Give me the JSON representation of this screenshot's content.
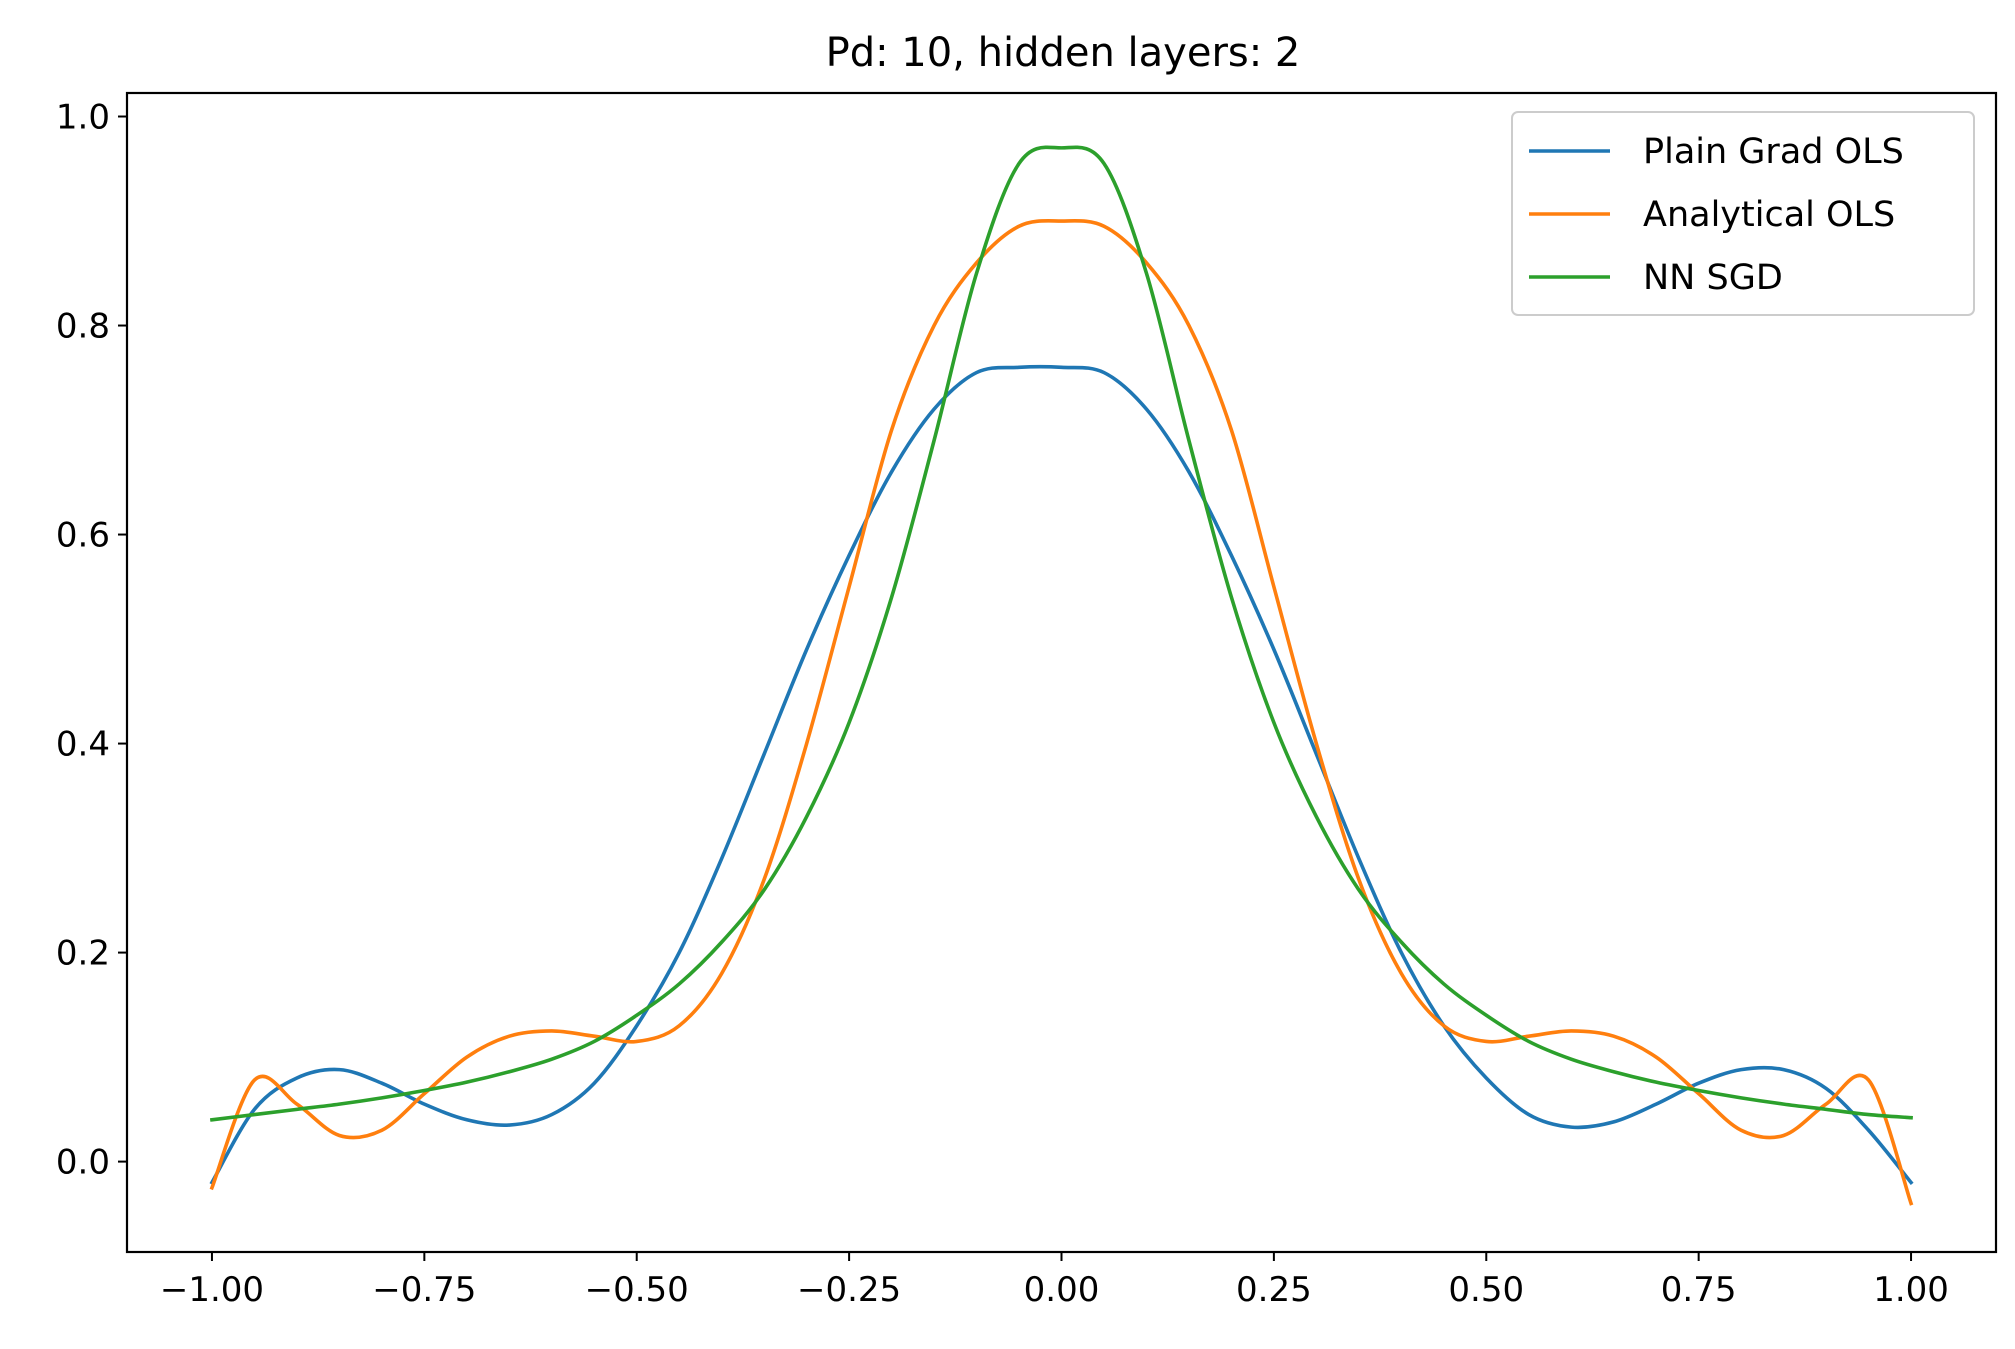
{
  "chart_data": {
    "type": "line",
    "title": "Pd: 10, hidden layers: 2",
    "xlabel": "",
    "ylabel": "",
    "xlim": [
      -1.1,
      1.1
    ],
    "ylim": [
      -0.0865,
      1.0225
    ],
    "x_ticks": [
      -1.0,
      -0.75,
      -0.5,
      -0.25,
      0.0,
      0.25,
      0.5,
      0.75,
      1.0
    ],
    "x_tick_labels": [
      "−1.00",
      "−0.75",
      "−0.50",
      "−0.25",
      "0.00",
      "0.25",
      "0.50",
      "0.75",
      "1.00"
    ],
    "y_ticks": [
      0.0,
      0.2,
      0.4,
      0.6,
      0.8,
      1.0
    ],
    "y_tick_labels": [
      "0.0",
      "0.2",
      "0.4",
      "0.6",
      "0.8",
      "1.0"
    ],
    "grid": false,
    "legend_position": "top-right",
    "x": [
      -1.0,
      -0.95,
      -0.9,
      -0.85,
      -0.8,
      -0.75,
      -0.7,
      -0.65,
      -0.6,
      -0.55,
      -0.5,
      -0.45,
      -0.4,
      -0.35,
      -0.3,
      -0.25,
      -0.2,
      -0.15,
      -0.1,
      -0.05,
      0.0,
      0.05,
      0.1,
      0.15,
      0.2,
      0.25,
      0.3,
      0.35,
      0.4,
      0.45,
      0.5,
      0.55,
      0.6,
      0.65,
      0.7,
      0.75,
      0.8,
      0.85,
      0.9,
      0.95,
      1.0
    ],
    "series": [
      {
        "name": "Plain Grad OLS",
        "color": "#1f77b4",
        "values": [
          -0.02,
          0.05,
          0.08,
          0.088,
          0.075,
          0.055,
          0.04,
          0.035,
          0.045,
          0.075,
          0.13,
          0.2,
          0.29,
          0.39,
          0.49,
          0.58,
          0.66,
          0.72,
          0.755,
          0.76,
          0.76,
          0.755,
          0.72,
          0.66,
          0.58,
          0.49,
          0.39,
          0.29,
          0.2,
          0.13,
          0.08,
          0.045,
          0.033,
          0.038,
          0.055,
          0.075,
          0.088,
          0.088,
          0.07,
          0.03,
          -0.02
        ]
      },
      {
        "name": "Analytical OLS",
        "color": "#ff7f0e",
        "values": [
          -0.025,
          0.078,
          0.055,
          0.025,
          0.03,
          0.065,
          0.1,
          0.12,
          0.125,
          0.12,
          0.115,
          0.13,
          0.18,
          0.27,
          0.4,
          0.55,
          0.7,
          0.8,
          0.86,
          0.895,
          0.9,
          0.895,
          0.86,
          0.8,
          0.7,
          0.55,
          0.4,
          0.27,
          0.18,
          0.13,
          0.115,
          0.12,
          0.125,
          0.12,
          0.1,
          0.065,
          0.03,
          0.025,
          0.055,
          0.078,
          -0.04
        ]
      },
      {
        "name": "NN SGD",
        "color": "#2ca02c",
        "values": [
          0.04,
          0.045,
          0.05,
          0.055,
          0.061,
          0.068,
          0.076,
          0.086,
          0.098,
          0.115,
          0.14,
          0.17,
          0.21,
          0.26,
          0.33,
          0.42,
          0.54,
          0.69,
          0.85,
          0.955,
          0.97,
          0.955,
          0.85,
          0.69,
          0.54,
          0.42,
          0.33,
          0.26,
          0.21,
          0.17,
          0.14,
          0.115,
          0.098,
          0.086,
          0.076,
          0.068,
          0.061,
          0.055,
          0.05,
          0.045,
          0.042
        ]
      }
    ]
  }
}
